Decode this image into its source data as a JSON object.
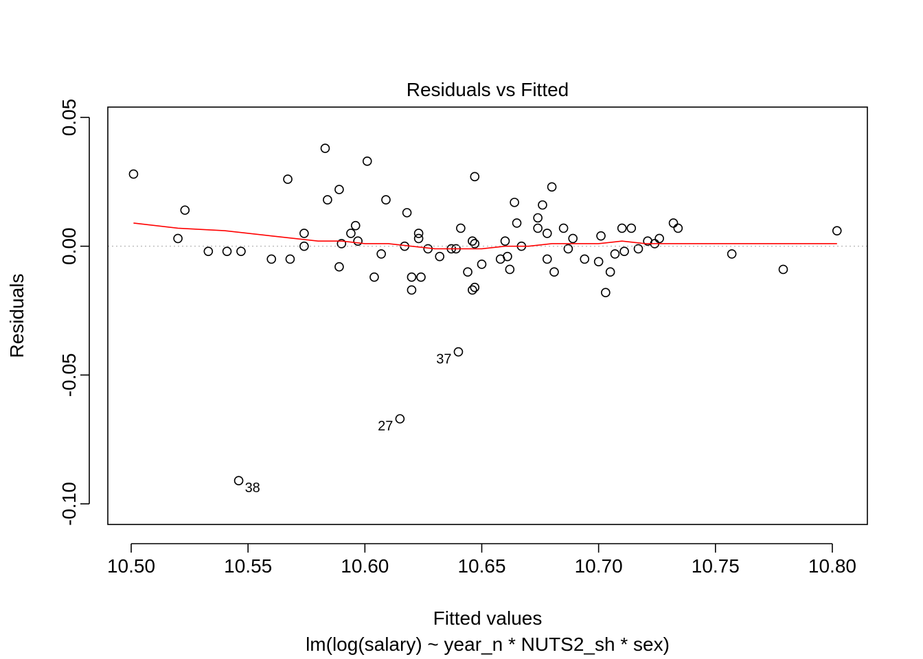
{
  "chart_data": {
    "type": "scatter",
    "title": "Residuals vs Fitted",
    "xlabel": "Fitted values",
    "ylabel": "Residuals",
    "subtitle": "lm(log(salary) ~ year_n * NUTS2_sh * sex)",
    "xlim": [
      10.49,
      10.815
    ],
    "ylim": [
      -0.108,
      0.054
    ],
    "x_ticks": [
      10.5,
      10.55,
      10.6,
      10.65,
      10.7,
      10.75,
      10.8
    ],
    "x_tick_labels": [
      "10.50",
      "10.55",
      "10.60",
      "10.65",
      "10.70",
      "10.75",
      "10.80"
    ],
    "y_ticks": [
      0.05,
      0.0,
      -0.05,
      -0.1
    ],
    "y_tick_labels": [
      "0.05",
      "0.00",
      "-0.05",
      "-0.10"
    ],
    "reference_line": {
      "y": 0,
      "style": "dotted",
      "color": "#bebebe"
    },
    "points": [
      [
        10.501,
        0.028
      ],
      [
        10.52,
        0.003
      ],
      [
        10.523,
        0.014
      ],
      [
        10.533,
        -0.002
      ],
      [
        10.541,
        -0.002
      ],
      [
        10.547,
        -0.002
      ],
      [
        10.56,
        -0.005
      ],
      [
        10.567,
        0.026
      ],
      [
        10.568,
        -0.005
      ],
      [
        10.574,
        0.005
      ],
      [
        10.574,
        0.0
      ],
      [
        10.583,
        0.038
      ],
      [
        10.584,
        0.018
      ],
      [
        10.589,
        0.022
      ],
      [
        10.589,
        -0.008
      ],
      [
        10.59,
        0.001
      ],
      [
        10.594,
        0.005
      ],
      [
        10.596,
        0.008
      ],
      [
        10.597,
        0.002
      ],
      [
        10.601,
        0.033
      ],
      [
        10.604,
        -0.012
      ],
      [
        10.607,
        -0.003
      ],
      [
        10.609,
        0.018
      ],
      [
        10.617,
        0.0
      ],
      [
        10.618,
        0.013
      ],
      [
        10.62,
        -0.012
      ],
      [
        10.62,
        -0.017
      ],
      [
        10.623,
        0.005
      ],
      [
        10.623,
        0.003
      ],
      [
        10.624,
        -0.012
      ],
      [
        10.627,
        -0.001
      ],
      [
        10.632,
        -0.004
      ],
      [
        10.637,
        -0.001
      ],
      [
        10.639,
        -0.001
      ],
      [
        10.641,
        0.007
      ],
      [
        10.644,
        -0.01
      ],
      [
        10.646,
        -0.017
      ],
      [
        10.646,
        0.002
      ],
      [
        10.647,
        0.027
      ],
      [
        10.647,
        0.001
      ],
      [
        10.647,
        -0.016
      ],
      [
        10.65,
        -0.007
      ],
      [
        10.658,
        -0.005
      ],
      [
        10.66,
        0.002
      ],
      [
        10.661,
        -0.004
      ],
      [
        10.662,
        -0.009
      ],
      [
        10.664,
        0.017
      ],
      [
        10.665,
        0.009
      ],
      [
        10.667,
        0.0
      ],
      [
        10.674,
        0.011
      ],
      [
        10.674,
        0.007
      ],
      [
        10.676,
        0.016
      ],
      [
        10.678,
        0.005
      ],
      [
        10.678,
        -0.005
      ],
      [
        10.68,
        0.023
      ],
      [
        10.681,
        -0.01
      ],
      [
        10.685,
        0.007
      ],
      [
        10.687,
        -0.001
      ],
      [
        10.689,
        0.003
      ],
      [
        10.694,
        -0.005
      ],
      [
        10.7,
        -0.006
      ],
      [
        10.701,
        0.004
      ],
      [
        10.703,
        -0.018
      ],
      [
        10.705,
        -0.01
      ],
      [
        10.707,
        -0.003
      ],
      [
        10.71,
        0.007
      ],
      [
        10.711,
        -0.002
      ],
      [
        10.714,
        0.007
      ],
      [
        10.717,
        -0.001
      ],
      [
        10.721,
        0.002
      ],
      [
        10.724,
        0.001
      ],
      [
        10.726,
        0.003
      ],
      [
        10.732,
        0.009
      ],
      [
        10.734,
        0.007
      ],
      [
        10.757,
        -0.003
      ],
      [
        10.779,
        -0.009
      ],
      [
        10.802,
        0.006
      ],
      [
        10.546,
        -0.091
      ],
      [
        10.615,
        -0.067
      ],
      [
        10.64,
        -0.041
      ]
    ],
    "labeled_points": [
      {
        "label": "38",
        "x": 10.546,
        "y": -0.091,
        "side": "right"
      },
      {
        "label": "27",
        "x": 10.615,
        "y": -0.067,
        "side": "left"
      },
      {
        "label": "37",
        "x": 10.64,
        "y": -0.041,
        "side": "left"
      }
    ],
    "smooth_line": {
      "color": "#ff0000",
      "points": [
        [
          10.501,
          0.009
        ],
        [
          10.52,
          0.007
        ],
        [
          10.54,
          0.006
        ],
        [
          10.56,
          0.004
        ],
        [
          10.57,
          0.003
        ],
        [
          10.58,
          0.002
        ],
        [
          10.59,
          0.002
        ],
        [
          10.6,
          0.001
        ],
        [
          10.61,
          0.001
        ],
        [
          10.62,
          0.0
        ],
        [
          10.63,
          -0.001
        ],
        [
          10.64,
          -0.001
        ],
        [
          10.65,
          -0.001
        ],
        [
          10.66,
          0.0
        ],
        [
          10.67,
          0.0
        ],
        [
          10.68,
          0.001
        ],
        [
          10.69,
          0.001
        ],
        [
          10.7,
          0.001
        ],
        [
          10.71,
          0.002
        ],
        [
          10.72,
          0.001
        ],
        [
          10.73,
          0.001
        ],
        [
          10.757,
          0.001
        ],
        [
          10.779,
          0.001
        ],
        [
          10.802,
          0.001
        ]
      ]
    }
  }
}
